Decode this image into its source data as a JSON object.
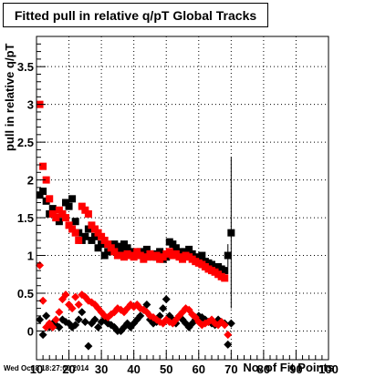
{
  "footer_timestamp": "Wed Oct  8 18:27:00 2014",
  "colors": {
    "series1": "#000000",
    "series2": "#ff0000",
    "frame": "#000000",
    "grid": "#000000"
  },
  "chart_data": {
    "type": "scatter",
    "title": "Fitted pull in relative q/pT  Global Tracks",
    "xlabel": "No. of Fit Points",
    "ylabel": "pull in relative q/pT",
    "xlim": [
      10,
      100
    ],
    "ylim": [
      -0.38,
      3.9
    ],
    "grid": true,
    "x_ticks": [
      10,
      20,
      30,
      40,
      50,
      60,
      70,
      80,
      90,
      100
    ],
    "y_ticks": [
      0,
      0.5,
      1,
      1.5,
      2,
      2.5,
      3,
      3.5
    ],
    "y_tick_labels": [
      "0",
      "0.5",
      "1",
      "1.5",
      "2",
      "2.5",
      "3",
      "3.5"
    ],
    "series": [
      {
        "marker": "square",
        "color": "#000000",
        "x": [
          11,
          12,
          13,
          14,
          15,
          16,
          17,
          18,
          19,
          20,
          21,
          22,
          23,
          24,
          25,
          26,
          27,
          28,
          29,
          30,
          31,
          32,
          33,
          34,
          35,
          36,
          37,
          38,
          39,
          40,
          41,
          42,
          43,
          44,
          45,
          46,
          47,
          48,
          49,
          50,
          51,
          52,
          53,
          54,
          55,
          56,
          57,
          58,
          59,
          60,
          61,
          62,
          63,
          64,
          65,
          66,
          67,
          68,
          69,
          70
        ],
        "y": [
          1.8,
          1.85,
          1.72,
          1.55,
          1.62,
          1.5,
          1.45,
          1.55,
          1.7,
          1.65,
          1.75,
          1.45,
          1.3,
          1.2,
          1.25,
          1.35,
          1.2,
          1.25,
          1.1,
          1.15,
          1.0,
          1.05,
          1.1,
          1.15,
          1.12,
          1.08,
          1.15,
          1.1,
          1.05,
          1.02,
          1.0,
          1.05,
          1.0,
          1.08,
          1.0,
          1.02,
          0.98,
          1.05,
          0.95,
          0.98,
          1.18,
          1.15,
          1.1,
          1.05,
          1.0,
          1.05,
          1.08,
          1.02,
          0.98,
          0.95,
          1.0,
          0.92,
          0.9,
          0.88,
          0.85,
          0.85,
          0.82,
          0.8,
          1.0,
          1.3
        ],
        "err": [
          0,
          0,
          0,
          0,
          0,
          0,
          0,
          0,
          0,
          0,
          0,
          0,
          0,
          0,
          0,
          0,
          0,
          0,
          0,
          0,
          0,
          0,
          0,
          0,
          0,
          0,
          0,
          0,
          0,
          0,
          0,
          0,
          0,
          0,
          0,
          0,
          0,
          0,
          0,
          0,
          0,
          0,
          0,
          0,
          0,
          0,
          0,
          0,
          0,
          0,
          0,
          0,
          0,
          0,
          0,
          0,
          0,
          0,
          0.15,
          1.0
        ]
      },
      {
        "marker": "square",
        "color": "#ff0000",
        "x": [
          11,
          12,
          13,
          14,
          15,
          16,
          17,
          18,
          19,
          20,
          21,
          22,
          23,
          24,
          25,
          26,
          27,
          28,
          29,
          30,
          31,
          32,
          33,
          34,
          35,
          36,
          37,
          38,
          39,
          40,
          41,
          42,
          43,
          44,
          45,
          46,
          47,
          48,
          49,
          50,
          51,
          52,
          53,
          54,
          55,
          56,
          57,
          58,
          59,
          60,
          61,
          62,
          63,
          64,
          65,
          66,
          67,
          68
        ],
        "y": [
          3.0,
          2.18,
          2.0,
          1.75,
          1.55,
          1.5,
          1.6,
          1.55,
          1.5,
          1.4,
          1.35,
          1.3,
          1.2,
          1.65,
          1.6,
          1.55,
          1.4,
          1.35,
          1.3,
          1.25,
          1.2,
          1.15,
          1.1,
          1.05,
          1.0,
          1.0,
          0.98,
          1.02,
          1.0,
          0.98,
          1.05,
          1.0,
          0.95,
          0.98,
          1.02,
          0.98,
          1.0,
          0.95,
          0.98,
          1.02,
          1.05,
          1.0,
          1.02,
          0.98,
          0.95,
          1.0,
          0.98,
          0.95,
          0.92,
          0.9,
          0.88,
          0.85,
          0.82,
          0.8,
          0.78,
          0.75,
          0.72,
          0.7
        ]
      },
      {
        "marker": "diamond",
        "color": "#000000",
        "x": [
          11,
          12,
          13,
          14,
          15,
          16,
          17,
          18,
          19,
          20,
          21,
          22,
          23,
          24,
          25,
          26,
          27,
          28,
          29,
          30,
          31,
          32,
          33,
          34,
          35,
          36,
          37,
          38,
          39,
          40,
          41,
          42,
          43,
          44,
          45,
          46,
          47,
          48,
          49,
          50,
          51,
          52,
          53,
          54,
          55,
          56,
          57,
          58,
          59,
          60,
          61,
          62,
          63,
          64,
          65,
          66,
          67,
          68,
          69,
          70
        ],
        "y": [
          0.15,
          -0.05,
          0.2,
          0.05,
          0.1,
          0.08,
          0.05,
          0.15,
          0.12,
          0.1,
          0.05,
          0.08,
          0.15,
          0.25,
          0.12,
          -0.2,
          0.1,
          0.15,
          0.05,
          0.12,
          0.15,
          0.1,
          0.08,
          0.05,
          0.0,
          0.0,
          0.05,
          0.1,
          0.05,
          0.1,
          0.15,
          0.2,
          0.28,
          0.35,
          0.15,
          0.1,
          0.12,
          0.2,
          0.3,
          0.42,
          0.2,
          0.15,
          0.1,
          0.2,
          0.15,
          0.1,
          0.05,
          0.1,
          0.15,
          0.2,
          0.18,
          0.15,
          0.12,
          0.1,
          0.08,
          0.15,
          0.12,
          0.1,
          -0.18,
          0.1
        ]
      },
      {
        "marker": "diamond",
        "color": "#ff0000",
        "x": [
          11,
          12,
          13,
          14,
          15,
          16,
          17,
          18,
          19,
          20,
          21,
          22,
          23,
          24,
          25,
          26,
          27,
          28,
          29,
          30,
          31,
          32,
          33,
          34,
          35,
          36,
          37,
          38,
          39,
          40,
          41,
          42,
          43,
          44,
          45,
          46,
          47,
          48,
          49,
          50,
          51,
          52,
          53,
          54,
          55,
          56,
          57,
          58,
          59,
          60,
          61,
          62,
          63,
          64,
          65,
          66,
          67,
          68,
          69
        ],
        "y": [
          0.87,
          0.4,
          0.05,
          0.1,
          0.05,
          0.15,
          0.25,
          0.42,
          0.48,
          0.35,
          0.3,
          0.45,
          0.35,
          0.48,
          0.45,
          0.4,
          0.38,
          0.35,
          0.3,
          0.25,
          0.2,
          0.18,
          0.22,
          0.25,
          0.3,
          0.28,
          0.25,
          0.3,
          0.35,
          0.32,
          0.35,
          0.3,
          0.28,
          0.25,
          0.2,
          0.18,
          0.15,
          0.12,
          0.1,
          0.15,
          0.12,
          0.1,
          0.15,
          0.2,
          0.25,
          0.3,
          0.28,
          0.22,
          0.18,
          0.12,
          0.08,
          0.1,
          0.12,
          0.15,
          0.1,
          0.08,
          0.12,
          0.08,
          -0.05
        ]
      }
    ]
  }
}
